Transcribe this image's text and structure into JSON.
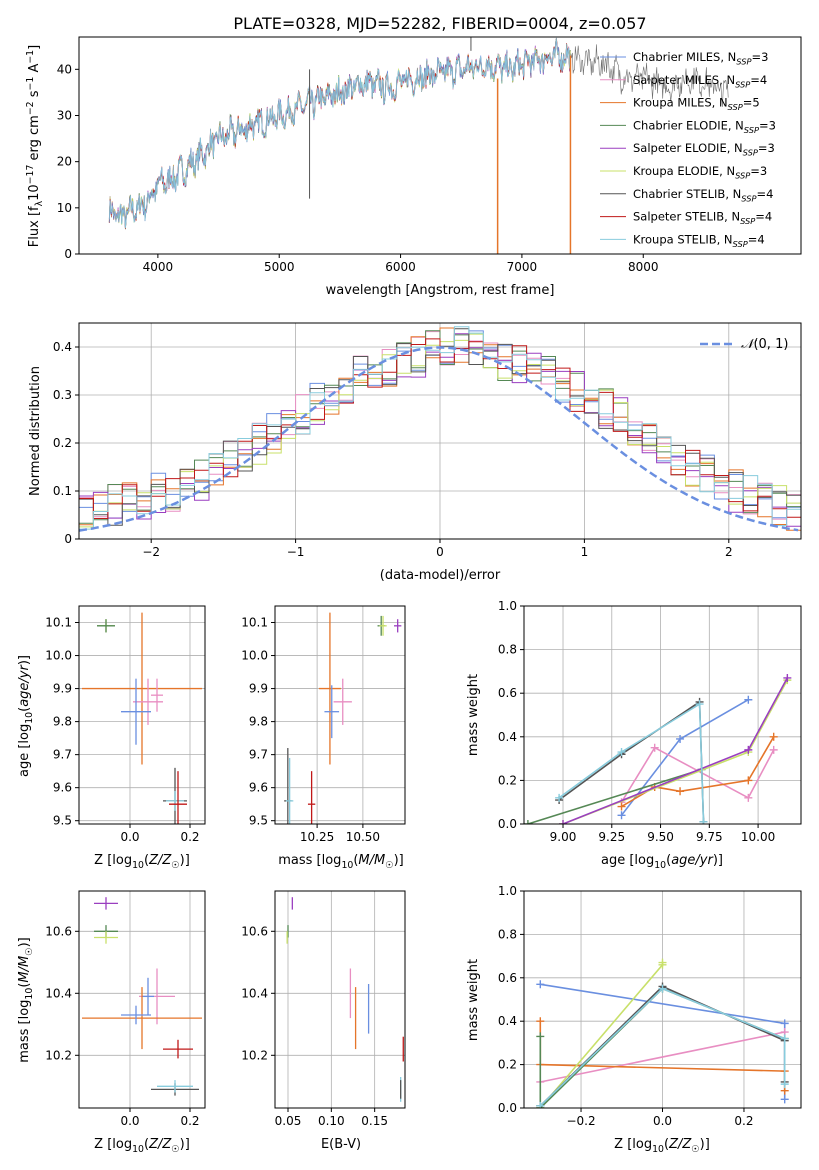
{
  "title": "PLATE=0328, MJD=52282, FIBERID=0004, z=0.057",
  "colors": {
    "chabrier_miles": "#6a8fe0",
    "salpeter_miles": "#e88ec2",
    "kroupa_miles": "#e5752a",
    "chabrier_elodie": "#558855",
    "salpeter_elodie": "#9a3fc0",
    "kroupa_elodie": "#c8e06a",
    "chabrier_stelib": "#555555",
    "salpeter_stelib": "#c01818",
    "kroupa_stelib": "#88ccdd",
    "gauss": "#6a8fe0"
  },
  "chart_data": [
    {
      "id": "spectrum",
      "type": "line",
      "xlabel": "wavelength [Angstrom, rest frame]",
      "ylabel": "Flux [fλ10⁻¹⁷ erg cm⁻² s⁻¹ A⁻¹]",
      "xlim": [
        3350,
        9300
      ],
      "ylim": [
        0,
        47
      ],
      "xticks": [
        4000,
        5000,
        6000,
        7000,
        8000
      ],
      "yticks": [
        0,
        10,
        20,
        30,
        40
      ],
      "legend_position": "right",
      "legend": [
        "Chabrier MILES, N_SSP=3",
        "Salpeter MILES, N_SSP=4",
        "Kroupa MILES, N_SSP=5",
        "Chabrier ELODIE, N_SSP=3",
        "Salpeter ELODIE, N_SSP=3",
        "Kroupa ELODIE, N_SSP=3",
        "Chabrier STELIB, N_SSP=4",
        "Salpeter STELIB, N_SSP=4",
        "Kroupa STELIB, N_SSP=4"
      ],
      "continuum": {
        "x": [
          3600,
          3700,
          3900,
          4000,
          4100,
          4300,
          4500,
          4700,
          4900,
          5100,
          5300,
          5500,
          5700,
          5900,
          6100,
          6300,
          6500,
          6700,
          6900,
          7100,
          7300,
          7500,
          7700,
          7800,
          7900,
          8000,
          8100,
          8200,
          8300,
          8400,
          8500,
          8700
        ],
        "y": [
          9,
          8,
          11,
          15,
          16,
          20,
          25,
          27,
          29,
          31,
          33,
          35,
          37,
          36,
          38,
          39,
          40,
          41,
          40,
          42,
          43,
          42,
          41,
          39,
          38,
          38,
          37,
          36,
          37,
          38,
          37,
          35
        ]
      }
    },
    {
      "id": "residual_histogram",
      "type": "bar",
      "xlabel": "(data-model)/error",
      "ylabel": "Normed distribution",
      "xlim": [
        -2.5,
        2.5
      ],
      "ylim": [
        0,
        0.45
      ],
      "xticks": [
        -2,
        -1,
        0,
        1,
        2
      ],
      "yticks": [
        0.0,
        0.1,
        0.2,
        0.3,
        0.4
      ],
      "grid": true,
      "legend": [
        "N(0, 1)"
      ],
      "legend_position": "top-right",
      "bin_width": 0.1,
      "base_profile": [
        0.02,
        0.022,
        0.024,
        0.03,
        0.04,
        0.05,
        0.06,
        0.07,
        0.08,
        0.085,
        0.095,
        0.1,
        0.11,
        0.125,
        0.14,
        0.16,
        0.18,
        0.2,
        0.22,
        0.24,
        0.26,
        0.28,
        0.3,
        0.32,
        0.34,
        0.35,
        0.36,
        0.37,
        0.38,
        0.39,
        0.4,
        0.4,
        0.39,
        0.38,
        0.37,
        0.36,
        0.35,
        0.34,
        0.32,
        0.31,
        0.29,
        0.27,
        0.25,
        0.23,
        0.21,
        0.19,
        0.17,
        0.15,
        0.13,
        0.11,
        0.1,
        0.09,
        0.08,
        0.07,
        0.06,
        0.05,
        0.045,
        0.04,
        0.035,
        0.03
      ]
    },
    {
      "id": "age_vs_Z",
      "type": "scatter",
      "xlabel": "Z [log10(Z/Z☉)]",
      "ylabel": "age  [log10(age/yr)]",
      "xlim": [
        -0.17,
        0.25
      ],
      "ylim": [
        9.49,
        10.15
      ],
      "xticks": [
        0.0,
        0.2
      ],
      "yticks": [
        9.5,
        9.6,
        9.7,
        9.8,
        9.9,
        10.0,
        10.1
      ],
      "grid": true,
      "points": [
        {
          "model": "kroupa_elodie",
          "x": -0.08,
          "y": 10.09,
          "xerr": 0.03,
          "yerr": 0.02
        },
        {
          "model": "chabrier_elodie",
          "x": -0.08,
          "y": 10.09,
          "xerr": 0.03,
          "yerr": 0.02
        },
        {
          "model": "kroupa_miles",
          "x": 0.04,
          "y": 9.9,
          "xerr": 0.2,
          "yerr": 0.23
        },
        {
          "model": "salpeter_miles",
          "x": 0.06,
          "y": 9.86,
          "xerr": 0.05,
          "yerr": 0.07
        },
        {
          "model": "salpeter_miles",
          "x": 0.09,
          "y": 9.88,
          "xerr": 0.02,
          "yerr": 0.05
        },
        {
          "model": "chabrier_miles",
          "x": 0.02,
          "y": 9.83,
          "xerr": 0.05,
          "yerr": 0.1
        },
        {
          "model": "chabrier_stelib",
          "x": 0.15,
          "y": 9.56,
          "xerr": 0.04,
          "yerr": 0.1
        },
        {
          "model": "kroupa_stelib",
          "x": 0.15,
          "y": 9.56,
          "xerr": 0.03,
          "yerr": 0.03
        },
        {
          "model": "salpeter_stelib",
          "x": 0.16,
          "y": 9.55,
          "xerr": 0.03,
          "yerr": 0.1
        }
      ]
    },
    {
      "id": "age_vs_mass",
      "type": "scatter",
      "xlabel": "mass [log10(M/M☉)]",
      "xlim": [
        10.02,
        10.73
      ],
      "ylim": [
        9.49,
        10.15
      ],
      "xticks": [
        10.25,
        10.5
      ],
      "yticks": [
        9.5,
        9.6,
        9.7,
        9.8,
        9.9,
        10.0,
        10.1
      ],
      "grid": true,
      "points": [
        {
          "model": "chabrier_elodie",
          "x": 10.6,
          "y": 10.09,
          "xerr": 0.02,
          "yerr": 0.03
        },
        {
          "model": "kroupa_elodie",
          "x": 10.61,
          "y": 10.09,
          "xerr": 0.02,
          "yerr": 0.03
        },
        {
          "model": "salpeter_elodie",
          "x": 10.69,
          "y": 10.09,
          "xerr": 0.02,
          "yerr": 0.02
        },
        {
          "model": "kroupa_miles",
          "x": 10.32,
          "y": 9.9,
          "xerr": 0.06,
          "yerr": 0.23
        },
        {
          "model": "salpeter_miles",
          "x": 10.39,
          "y": 9.86,
          "xerr": 0.05,
          "yerr": 0.07
        },
        {
          "model": "chabrier_miles",
          "x": 10.33,
          "y": 9.83,
          "xerr": 0.04,
          "yerr": 0.08
        },
        {
          "model": "chabrier_stelib",
          "x": 10.09,
          "y": 9.56,
          "xerr": 0.02,
          "yerr": 0.16
        },
        {
          "model": "kroupa_stelib",
          "x": 10.1,
          "y": 9.56,
          "xerr": 0.02,
          "yerr": 0.13
        },
        {
          "model": "salpeter_stelib",
          "x": 10.22,
          "y": 9.55,
          "xerr": 0.02,
          "yerr": 0.1
        }
      ]
    },
    {
      "id": "mass_weight_vs_age",
      "type": "line",
      "xlabel": "age  [log10(age/yr)]",
      "ylabel": "mass weight",
      "xlim": [
        8.8,
        10.22
      ],
      "ylim": [
        0,
        1.0
      ],
      "xticks": [
        9.0,
        9.25,
        9.5,
        9.75,
        10.0
      ],
      "yticks": [
        0.0,
        0.2,
        0.4,
        0.6,
        0.8,
        1.0
      ],
      "grid": true,
      "series": [
        {
          "model": "chabrier_miles",
          "x": [
            9.3,
            9.6,
            9.95
          ],
          "y": [
            0.04,
            0.39,
            0.57
          ]
        },
        {
          "model": "salpeter_miles",
          "x": [
            9.3,
            9.47,
            9.95,
            10.08
          ],
          "y": [
            0.1,
            0.35,
            0.12,
            0.34
          ]
        },
        {
          "model": "kroupa_miles",
          "x": [
            9.3,
            9.47,
            9.6,
            9.95,
            10.08
          ],
          "y": [
            0.08,
            0.17,
            0.15,
            0.2,
            0.4
          ]
        },
        {
          "model": "chabrier_elodie",
          "x": [
            8.82,
            9.71
          ],
          "y": [
            0.0,
            0.25
          ]
        },
        {
          "model": "kroupa_elodie",
          "x": [
            9.0,
            9.95,
            10.15
          ],
          "y": [
            0.0,
            0.33,
            0.66
          ]
        },
        {
          "model": "salpeter_elodie",
          "x": [
            9.0,
            9.95,
            10.15
          ],
          "y": [
            0.0,
            0.34,
            0.67
          ]
        },
        {
          "model": "chabrier_stelib",
          "x": [
            8.98,
            9.3,
            9.7,
            9.72
          ],
          "y": [
            0.11,
            0.32,
            0.56,
            0.01
          ]
        },
        {
          "model": "kroupa_stelib",
          "x": [
            8.98,
            9.3,
            9.7,
            9.72
          ],
          "y": [
            0.12,
            0.33,
            0.55,
            0.01
          ]
        }
      ]
    },
    {
      "id": "mass_vs_Z",
      "type": "scatter",
      "xlabel": "Z [log10(Z/Z☉)]",
      "ylabel": "mass [log10(M/M☉)]",
      "xlim": [
        -0.17,
        0.25
      ],
      "ylim": [
        10.03,
        10.73
      ],
      "xticks": [
        0.0,
        0.2
      ],
      "yticks": [
        10.2,
        10.4,
        10.6
      ],
      "grid": true,
      "points": [
        {
          "model": "salpeter_elodie",
          "x": -0.08,
          "y": 10.69,
          "xerr": 0.04,
          "yerr": 0.02
        },
        {
          "model": "chabrier_elodie",
          "x": -0.08,
          "y": 10.6,
          "xerr": 0.04,
          "yerr": 0.02
        },
        {
          "model": "kroupa_elodie",
          "x": -0.08,
          "y": 10.58,
          "xerr": 0.04,
          "yerr": 0.02
        },
        {
          "model": "salpeter_miles",
          "x": 0.09,
          "y": 10.39,
          "xerr": 0.06,
          "yerr": 0.09
        },
        {
          "model": "chabrier_miles",
          "x": 0.06,
          "y": 10.39,
          "xerr": 0.02,
          "yerr": 0.06
        },
        {
          "model": "kroupa_miles",
          "x": 0.04,
          "y": 10.32,
          "xerr": 0.2,
          "yerr": 0.1
        },
        {
          "model": "chabrier_miles",
          "x": 0.02,
          "y": 10.33,
          "xerr": 0.05,
          "yerr": 0.03
        },
        {
          "model": "salpeter_stelib",
          "x": 0.16,
          "y": 10.22,
          "xerr": 0.05,
          "yerr": 0.03
        },
        {
          "model": "chabrier_stelib",
          "x": 0.15,
          "y": 10.09,
          "xerr": 0.08,
          "yerr": 0.02
        },
        {
          "model": "kroupa_stelib",
          "x": 0.15,
          "y": 10.1,
          "xerr": 0.06,
          "yerr": 0.02
        }
      ]
    },
    {
      "id": "mass_vs_ebv",
      "type": "scatter",
      "xlabel": "E(B-V)",
      "xlim": [
        0.035,
        0.185
      ],
      "ylim": [
        10.03,
        10.73
      ],
      "xticks": [
        0.05,
        0.1,
        0.15
      ],
      "yticks": [
        10.2,
        10.4,
        10.6
      ],
      "grid": true,
      "points": [
        {
          "model": "salpeter_elodie",
          "x": 0.055,
          "y": 10.69,
          "yerr": 0.02
        },
        {
          "model": "chabrier_elodie",
          "x": 0.05,
          "y": 10.6,
          "yerr": 0.02
        },
        {
          "model": "kroupa_elodie",
          "x": 0.049,
          "y": 10.58,
          "yerr": 0.02
        },
        {
          "model": "salpeter_miles",
          "x": 0.122,
          "y": 10.4,
          "yerr": 0.08
        },
        {
          "model": "kroupa_miles",
          "x": 0.128,
          "y": 10.32,
          "yerr": 0.1
        },
        {
          "model": "chabrier_miles",
          "x": 0.143,
          "y": 10.35,
          "yerr": 0.08
        },
        {
          "model": "salpeter_stelib",
          "x": 0.183,
          "y": 10.22,
          "yerr": 0.04
        },
        {
          "model": "kroupa_stelib",
          "x": 0.18,
          "y": 10.09,
          "yerr": 0.04
        },
        {
          "model": "chabrier_stelib",
          "x": 0.18,
          "y": 10.09,
          "yerr": 0.03
        }
      ]
    },
    {
      "id": "mass_weight_vs_Z",
      "type": "line",
      "xlabel": "Z [log10(Z/Z☉)]",
      "ylabel": "mass weight",
      "xlim": [
        -0.34,
        0.34
      ],
      "ylim": [
        0,
        1.0
      ],
      "xticks": [
        -0.2,
        0.0,
        0.2
      ],
      "yticks": [
        0.0,
        0.2,
        0.4,
        0.6,
        0.8,
        1.0
      ],
      "grid": true,
      "series": [
        {
          "model": "chabrier_miles",
          "x": [
            -0.3,
            0.3,
            0.3
          ],
          "y": [
            0.57,
            0.39,
            0.04
          ]
        },
        {
          "model": "salpeter_miles",
          "x": [
            -0.3,
            0.3
          ],
          "y": [
            0.12,
            0.35
          ]
        },
        {
          "model": "kroupa_miles",
          "x": [
            -0.3,
            -0.3,
            0.3,
            0.3
          ],
          "y": [
            0.4,
            0.2,
            0.17,
            0.08
          ]
        },
        {
          "model": "kroupa_elodie",
          "x": [
            -0.3,
            0.0,
            0.0
          ],
          "y": [
            0.0,
            0.66,
            0.67
          ]
        },
        {
          "model": "chabrier_elodie",
          "x": [
            -0.3,
            -0.3,
            0.0,
            0.3
          ],
          "y": [
            0.33,
            0.0,
            0.55,
            0.32
          ]
        },
        {
          "model": "chabrier_stelib",
          "x": [
            -0.3,
            0.0,
            0.3,
            0.3
          ],
          "y": [
            0.01,
            0.56,
            0.31,
            0.12
          ]
        },
        {
          "model": "kroupa_stelib",
          "x": [
            -0.3,
            0.0,
            0.3,
            0.3
          ],
          "y": [
            0.01,
            0.55,
            0.32,
            0.11
          ]
        }
      ]
    }
  ]
}
